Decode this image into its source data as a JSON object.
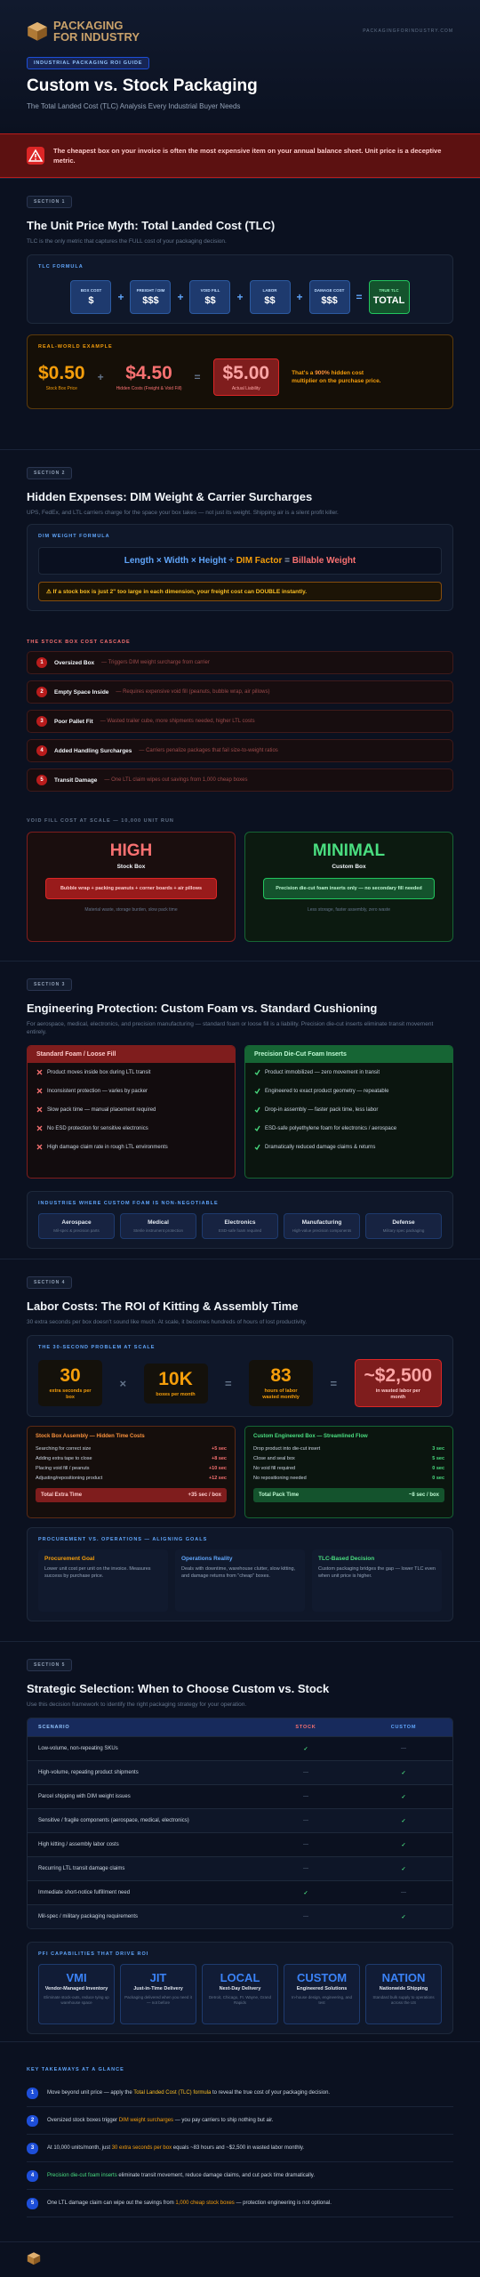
{
  "header": {
    "logo_line1": "PACKAGING",
    "logo_line2": "FOR INDUSTRY",
    "url": "PACKAGINGFORINDUSTRY.COM",
    "tag": "INDUSTRIAL PACKAGING ROI GUIDE",
    "title": "Custom vs. Stock Packaging",
    "subtitle": "The Total Landed Cost (TLC) Analysis Every Industrial Buyer Needs"
  },
  "alert": "The cheapest box on your invoice is often the most expensive item on your annual balance sheet. Unit price is a deceptive metric.",
  "section1": {
    "badge": "SECTION 1",
    "title": "The Unit Price Myth: Total Landed Cost (TLC)",
    "subtitle": "TLC is the only metric that captures the FULL cost of your packaging decision.",
    "formula": {
      "label": "TLC FORMULA",
      "terms": [
        {
          "label": "BOX COST",
          "value": "$"
        },
        {
          "label": "FREIGHT / DIM",
          "value": "$$$"
        },
        {
          "label": "VOID FILL",
          "value": "$$"
        },
        {
          "label": "LABOR",
          "value": "$$"
        },
        {
          "label": "DAMAGE COST",
          "value": "$$$"
        },
        {
          "label": "TRUE TLC",
          "value": "TOTAL"
        }
      ],
      "operators": [
        "+",
        "+",
        "+",
        "+",
        "="
      ]
    },
    "example": {
      "label": "REAL-WORLD EXAMPLE",
      "items": [
        {
          "value": "$0.50",
          "caption": "Stock Box Price",
          "color": "#f59e0b"
        },
        {
          "value": "$4.50",
          "caption": "Hidden Costs (Freight & Void Fill)",
          "color": "#f87171"
        },
        {
          "value": "$5.00",
          "caption": "Actual Liability",
          "color": "#fca5a5"
        }
      ],
      "operators": [
        "+",
        "="
      ],
      "note": {
        "pre": "That's a ",
        "em": "900%",
        "post": " hidden cost multiplier on the purchase price.",
        "em_color": "#fb923c"
      }
    }
  },
  "section2": {
    "badge": "SECTION 2",
    "title": "Hidden Expenses: DIM Weight & Carrier Surcharges",
    "subtitle": "UPS, FedEx, and LTL carriers charge for the space your box takes — not just its weight. Shipping air is a silent profit killer.",
    "formula": {
      "label": "DIM WEIGHT FORMULA",
      "parts": [
        {
          "text": "Length × Width × Height ÷ ",
          "color": "#60a5fa"
        },
        {
          "text": "DIM Factor",
          "color": "#f59e0b"
        },
        {
          "text": " = ",
          "color": "#94a3b8"
        },
        {
          "text": "Billable Weight",
          "color": "#f87171"
        }
      ],
      "warning": "⚠ If a stock box is just 2\" too large in each dimension, your freight cost can DOUBLE instantly."
    },
    "cascade": {
      "label": "THE STOCK BOX COST CASCADE",
      "items": [
        {
          "num": "1",
          "title": "Oversized Box",
          "desc": "— Triggers DIM weight surcharge from carrier"
        },
        {
          "num": "2",
          "title": "Empty Space Inside",
          "desc": "— Requires expensive void fill (peanuts, bubble wrap, air pillows)"
        },
        {
          "num": "3",
          "title": "Poor Pallet Fit",
          "desc": "— Wasted trailer cube, more shipments needed, higher LTL costs"
        },
        {
          "num": "4",
          "title": "Added Handling Surcharges",
          "desc": "— Carriers penalize packages that fail size-to-weight ratios"
        },
        {
          "num": "5",
          "title": "Transit Damage",
          "desc": "— One LTL claim wipes out savings from 1,000 cheap boxes"
        }
      ]
    },
    "void_fill": {
      "label": "VOID FILL COST AT SCALE — 10,000 UNIT RUN",
      "stock": {
        "level": "HIGH",
        "name": "Stock Box",
        "detail": "Bubble wrap + packing peanuts + corner boards + air pillows",
        "note": "Material waste, storage burden, slow pack time"
      },
      "custom": {
        "level": "MINIMAL",
        "name": "Custom Box",
        "detail": "Precision die-cut foam inserts only — no secondary fill needed",
        "note": "Less storage, faster assembly, zero waste"
      }
    }
  },
  "section3": {
    "badge": "SECTION 3",
    "title": "Engineering Protection: Custom Foam vs. Standard Cushioning",
    "subtitle": "For aerospace, medical, electronics, and precision manufacturing — standard foam or loose fill is a liability. Precision die-cut inserts eliminate transit movement entirely.",
    "standard": {
      "header": "Standard Foam / Loose Fill",
      "items": [
        "Product moves inside box during LTL transit",
        "Inconsistent protection — varies by packer",
        "Slow pack time — manual placement required",
        "No ESD protection for sensitive electronics",
        "High damage claim rate in rough LTL environments"
      ]
    },
    "precision": {
      "header": "Precision Die-Cut Foam Inserts",
      "items": [
        "Product immobilized — zero movement in transit",
        "Engineered to exact product geometry — repeatable",
        "Drop-in assembly — faster pack time, less labor",
        "ESD-safe polyethylene foam for electronics / aerospace",
        "Dramatically reduced damage claims & returns"
      ]
    },
    "industries": {
      "label": "INDUSTRIES WHERE CUSTOM FOAM IS NON-NEGOTIABLE",
      "items": [
        {
          "name": "Aerospace",
          "desc": "Mil-spec & precision parts"
        },
        {
          "name": "Medical",
          "desc": "Sterile instrument protection"
        },
        {
          "name": "Electronics",
          "desc": "ESD-safe foam required"
        },
        {
          "name": "Manufacturing",
          "desc": "High-value precision components"
        },
        {
          "name": "Defense",
          "desc": "Military spec packaging"
        }
      ]
    }
  },
  "section4": {
    "badge": "SECTION 4",
    "title": "Labor Costs: The ROI of Kitting & Assembly Time",
    "subtitle": "30 extra seconds per box doesn't sound like much. At scale, it becomes hundreds of hours of lost productivity.",
    "problem": {
      "label": "THE 30-SECOND PROBLEM AT SCALE",
      "stats": [
        {
          "value": "30",
          "caption": "extra seconds per box"
        },
        {
          "value": "10K",
          "caption": "boxes per month"
        },
        {
          "value": "83",
          "caption": "hours of labor wasted monthly"
        },
        {
          "value": "~$2,500",
          "caption": "in wasted labor per month"
        }
      ],
      "operators": [
        "×",
        "=",
        "="
      ]
    },
    "stock_time": {
      "title": "Stock Box Assembly — Hidden Time Costs",
      "rows": [
        {
          "label": "Searching for correct size",
          "value": "+5 sec"
        },
        {
          "label": "Adding extra tape to close",
          "value": "+8 sec"
        },
        {
          "label": "Placing void fill / peanuts",
          "value": "+10 sec"
        },
        {
          "label": "Adjusting/repositioning product",
          "value": "+12 sec"
        }
      ],
      "total_label": "Total Extra Time",
      "total_value": "+35 sec / box"
    },
    "custom_time": {
      "title": "Custom Engineered Box — Streamlined Flow",
      "rows": [
        {
          "label": "Drop product into die-cut insert",
          "value": "3 sec"
        },
        {
          "label": "Close and seal box",
          "value": "5 sec"
        },
        {
          "label": "No void fill required",
          "value": "0 sec"
        },
        {
          "label": "No repositioning needed",
          "value": "0 sec"
        }
      ],
      "total_label": "Total Pack Time",
      "total_value": "~8 sec / box"
    },
    "alignment": {
      "label": "PROCUREMENT VS. OPERATIONS — ALIGNING GOALS",
      "cols": [
        {
          "title": "Procurement Goal",
          "text": "Lower unit cost per unit on the invoice. Measures success by purchase price.",
          "color": "#f59e0b"
        },
        {
          "title": "Operations Reality",
          "text": "Deals with downtime, warehouse clutter, slow kitting, and damage returns from \"cheap\" boxes.",
          "color": "#60a5fa"
        },
        {
          "title": "TLC-Based Decision",
          "text": "Custom packaging bridges the gap — lower TLC even when unit price is higher.",
          "color": "#4ade80"
        }
      ]
    }
  },
  "section5": {
    "badge": "SECTION 5",
    "title": "Strategic Selection: When to Choose Custom vs. Stock",
    "subtitle": "Use this decision framework to identify the right packaging strategy for your operation.",
    "table": {
      "header": [
        {
          "text": "SCENARIO",
          "color": "#93c5fd"
        },
        {
          "text": "STOCK",
          "color": "#f87171"
        },
        {
          "text": "CUSTOM",
          "color": "#60a5fa"
        }
      ],
      "rows": [
        {
          "scenario": "Low-volume, non-repeating SKUs",
          "stock": {
            "text": "✓",
            "color": "#4ade80"
          },
          "custom": {
            "text": "—",
            "color": "#475569"
          }
        },
        {
          "scenario": "High-volume, repeating product shipments",
          "stock": {
            "text": "—",
            "color": "#475569"
          },
          "custom": {
            "text": "✓",
            "color": "#4ade80"
          }
        },
        {
          "scenario": "Parcel shipping with DIM weight issues",
          "stock": {
            "text": "—",
            "color": "#475569"
          },
          "custom": {
            "text": "✓",
            "color": "#4ade80"
          }
        },
        {
          "scenario": "Sensitive / fragile components (aerospace, medical, electronics)",
          "stock": {
            "text": "—",
            "color": "#475569"
          },
          "custom": {
            "text": "✓",
            "color": "#4ade80"
          }
        },
        {
          "scenario": "High kitting / assembly labor costs",
          "stock": {
            "text": "—",
            "color": "#475569"
          },
          "custom": {
            "text": "✓",
            "color": "#4ade80"
          }
        },
        {
          "scenario": "Recurring LTL transit damage claims",
          "stock": {
            "text": "—",
            "color": "#475569"
          },
          "custom": {
            "text": "✓",
            "color": "#4ade80"
          }
        },
        {
          "scenario": "Immediate short-notice fulfillment need",
          "stock": {
            "text": "✓",
            "color": "#4ade80"
          },
          "custom": {
            "text": "—",
            "color": "#475569"
          }
        },
        {
          "scenario": "Mil-spec / military packaging requirements",
          "stock": {
            "text": "—",
            "color": "#475569"
          },
          "custom": {
            "text": "✓",
            "color": "#4ade80"
          }
        }
      ]
    },
    "capabilities": {
      "label": "PFI CAPABILITIES THAT DRIVE ROI",
      "items": [
        {
          "abbr": "VMI",
          "name": "Vendor-Managed Inventory",
          "desc": "Eliminate stock-outs, reduce tying up warehouse space"
        },
        {
          "abbr": "JIT",
          "name": "Just-in-Time Delivery",
          "desc": "Packaging delivered when you need it — not before"
        },
        {
          "abbr": "LOCAL",
          "name": "Next-Day Delivery",
          "desc": "Detroit, Chicago, Ft. Wayne, Grand Rapids"
        },
        {
          "abbr": "CUSTOM",
          "name": "Engineered Solutions",
          "desc": "In-house design, engineering, and test"
        },
        {
          "abbr": "NATION",
          "name": "Nationwide Shipping",
          "desc": "Standard bulk supply to operations across the US"
        }
      ]
    }
  },
  "takeaways": {
    "label": "KEY TAKEAWAYS AT A GLANCE",
    "items": [
      {
        "num": "1",
        "pre": "Move beyond unit price — apply the ",
        "em": "Total Landed Cost (TLC) formula",
        "post": " to reveal the true cost of your packaging decision.",
        "em_color": "#fbbf24"
      },
      {
        "num": "2",
        "pre": "Oversized stock boxes trigger ",
        "em": "DIM weight surcharges",
        "post": " — you pay carriers to ship nothing but air.",
        "em_color": "#f59e0b"
      },
      {
        "num": "3",
        "pre": "At 10,000 units/month, just ",
        "em": "30 extra seconds per box",
        "post": " equals ~83 hours and ~$2,500 in wasted labor monthly.",
        "em_color": "#f59e0b"
      },
      {
        "num": "4",
        "pre": "",
        "em": "Precision die-cut foam inserts",
        "post": " eliminate transit movement, reduce damage claims, and cut pack time dramatically.",
        "em_color": "#4ade80"
      },
      {
        "num": "5",
        "pre": "One LTL damage claim can wipe out the savings from ",
        "em": "1,000 cheap stock boxes",
        "post": " — protection engineering is not optional.",
        "em_color": "#f59e0b"
      }
    ]
  }
}
